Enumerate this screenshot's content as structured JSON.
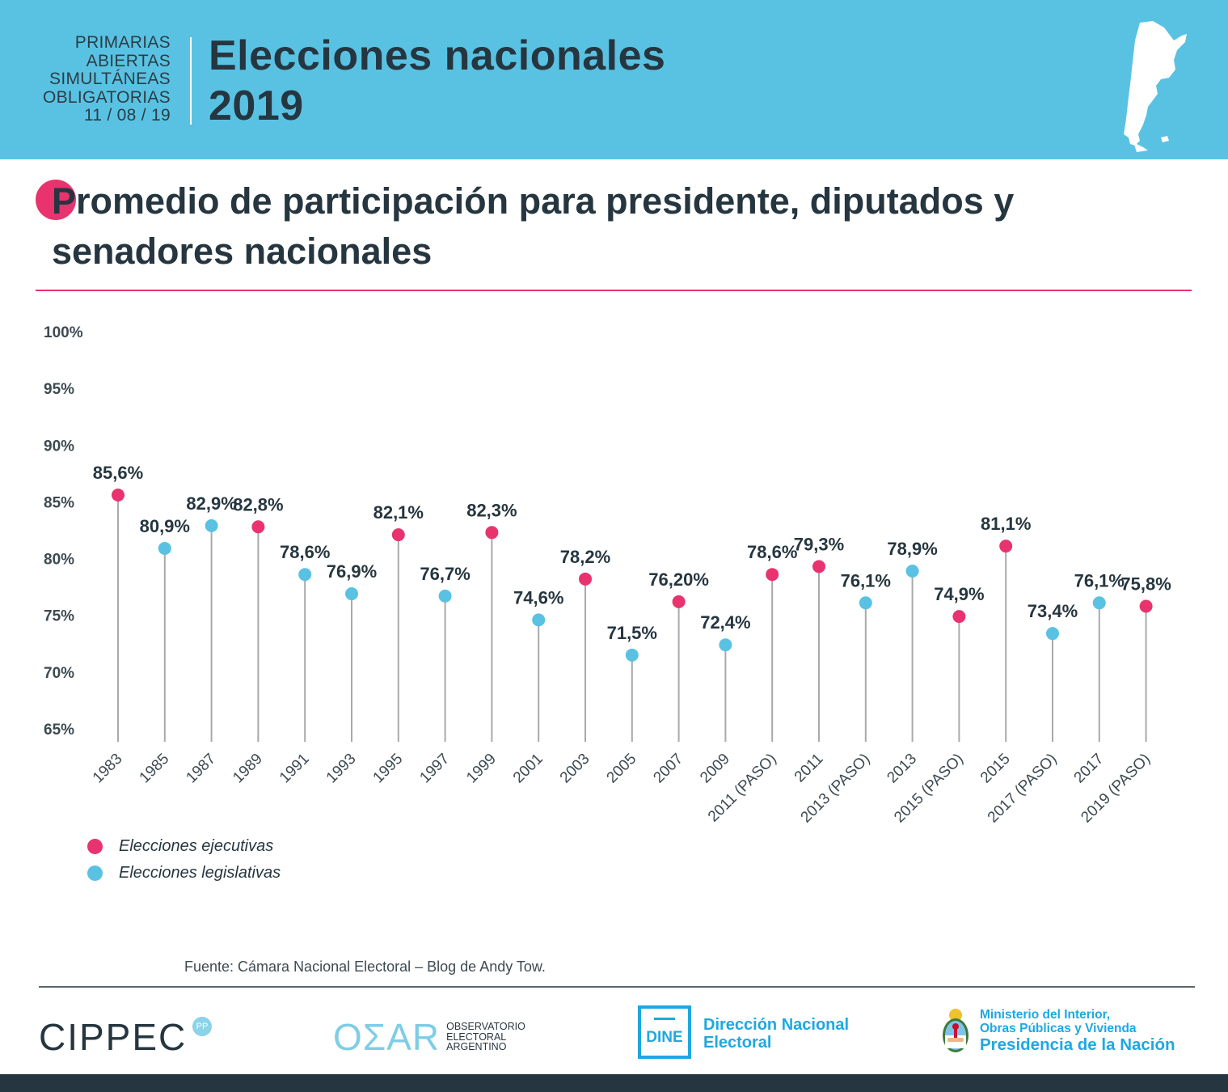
{
  "header": {
    "subtitle_lines": [
      "PRIMARIAS",
      "ABIERTAS",
      "SIMULTÁNEAS",
      "OBLIGATORIAS",
      "11 / 08 / 19"
    ],
    "title_line1": "Elecciones nacionales",
    "title_line2": "2019",
    "background_color": "#59c2e3",
    "map_icon": "argentina-map-icon"
  },
  "colors": {
    "executive": "#e8336f",
    "legislative": "#59c2e3",
    "text": "#263640",
    "stem": "#a9a9a9"
  },
  "chart_data": {
    "type": "scatter",
    "subtype": "lollipop",
    "title_line1": "Promedio de participación para presidente, diputados y",
    "title_line2": "senadores nacionales",
    "xlabel": "",
    "ylabel": "",
    "ylim": [
      65,
      100
    ],
    "yticks": [
      100,
      95,
      90,
      85,
      80,
      75,
      70,
      65
    ],
    "ytick_labels": [
      "100%",
      "95%",
      "90%",
      "85%",
      "80%",
      "75%",
      "70%",
      "65%"
    ],
    "grid": false,
    "legend_position": "bottom-left",
    "categories": [
      "1983",
      "1985",
      "1987",
      "1989",
      "1991",
      "1993",
      "1995",
      "1997",
      "1999",
      "2001",
      "2003",
      "2005",
      "2007",
      "2009",
      "2011 (PASO)",
      "2011",
      "2013 (PASO)",
      "2013",
      "2015 (PASO)",
      "2015",
      "2017 (PASO)",
      "2017",
      "2019 (PASO)"
    ],
    "values": [
      85.6,
      80.9,
      82.9,
      82.8,
      78.6,
      76.9,
      82.1,
      76.7,
      82.3,
      74.6,
      78.2,
      71.5,
      76.2,
      72.4,
      78.6,
      79.3,
      76.1,
      78.9,
      74.9,
      81.1,
      73.4,
      76.1,
      75.8
    ],
    "labels": [
      "85,6%",
      "80,9%",
      "82,9%",
      "82,8%",
      "78,6%",
      "76,9%",
      "82,1%",
      "76,7%",
      "82,3%",
      "74,6%",
      "78,2%",
      "71,5%",
      "76,20%",
      "72,4%",
      "78,6%",
      "79,3%",
      "76,1%",
      "78,9%",
      "74,9%",
      "81,1%",
      "73,4%",
      "76,1%",
      "75,8%"
    ],
    "types": [
      "executive",
      "legislative",
      "legislative",
      "executive",
      "legislative",
      "legislative",
      "executive",
      "legislative",
      "executive",
      "legislative",
      "executive",
      "legislative",
      "executive",
      "legislative",
      "executive",
      "executive",
      "legislative",
      "legislative",
      "executive",
      "executive",
      "legislative",
      "legislative",
      "executive"
    ],
    "series": [
      {
        "name": "Elecciones ejecutivas",
        "key": "executive",
        "color": "#e8336f"
      },
      {
        "name": "Elecciones legislativas",
        "key": "legislative",
        "color": "#59c2e3"
      }
    ]
  },
  "legend": {
    "items": [
      {
        "label": "Elecciones ejecutivas",
        "color": "#e8336f"
      },
      {
        "label": "Elecciones legislativas",
        "color": "#59c2e3"
      }
    ]
  },
  "source": "Fuente: Cámara Nacional Electoral – Blog de Andy Tow.",
  "footer": {
    "cippec": "CIPPEC",
    "cippec_badge": "PP",
    "oear_mark": "OΣAR",
    "oear_text": [
      "OBSERVATORIO",
      "ELECTORAL",
      "ARGENTINO"
    ],
    "dine_mark": "DINE",
    "dine_name_line1": "Dirección Nacional",
    "dine_name_line2": "Electoral",
    "ministerio_line1": "Ministerio del Interior,",
    "ministerio_line2": "Obras Públicas y Vivienda",
    "ministerio_line3": "Presidencia de la Nación"
  }
}
